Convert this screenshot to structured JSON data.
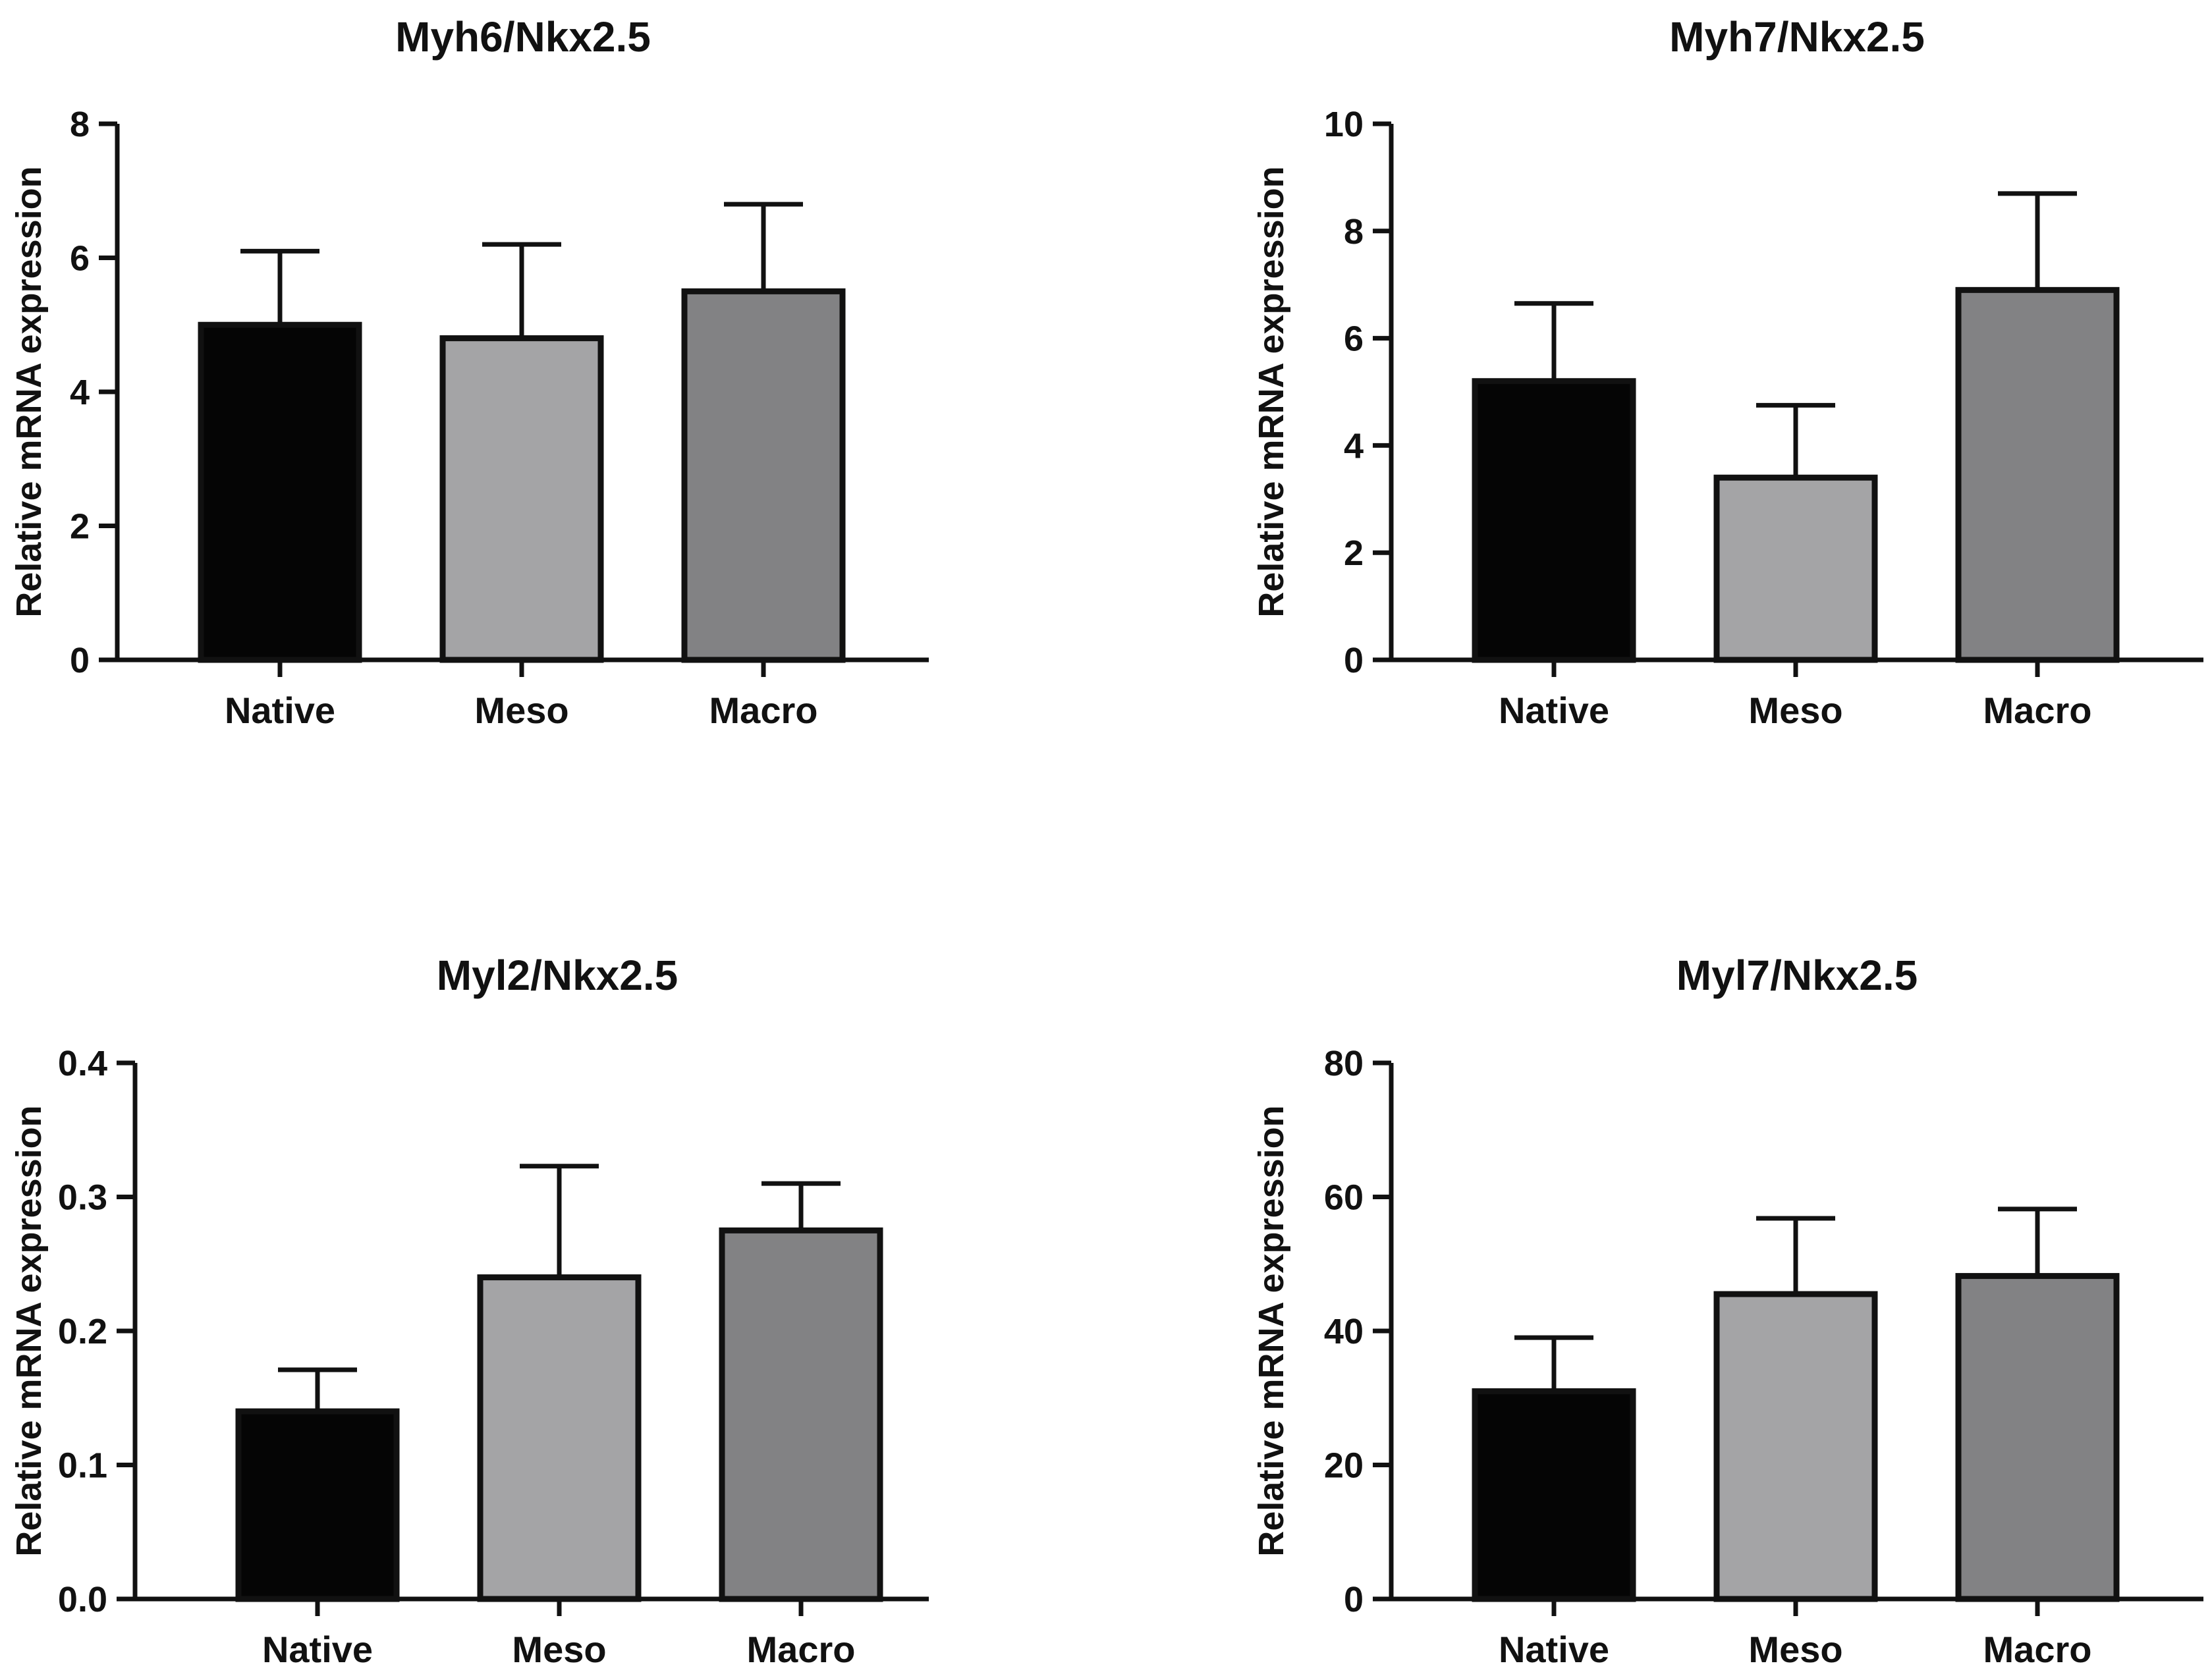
{
  "chart_data": [
    {
      "type": "bar",
      "title": "Myh6/Nkx2.5",
      "xlabel": "",
      "ylabel": "Relative mRNA expression",
      "categories": [
        "Native",
        "Meso",
        "Macro"
      ],
      "values": [
        5.0,
        4.8,
        5.5
      ],
      "errors": [
        1.1,
        1.4,
        1.3
      ],
      "ylim": [
        0,
        8
      ],
      "yticks": [
        0,
        2,
        4,
        6,
        8
      ],
      "ytick_labels": [
        "0",
        "2",
        "4",
        "6",
        "8"
      ],
      "grid": false
    },
    {
      "type": "bar",
      "title": "Myh7/Nkx2.5",
      "xlabel": "",
      "ylabel": "Relative mRNA expression",
      "categories": [
        "Native",
        "Meso",
        "Macro"
      ],
      "values": [
        5.2,
        3.4,
        6.9
      ],
      "errors": [
        1.45,
        1.35,
        1.8
      ],
      "ylim": [
        0,
        10
      ],
      "yticks": [
        0,
        2,
        4,
        6,
        8,
        10
      ],
      "ytick_labels": [
        "0",
        "2",
        "4",
        "6",
        "8",
        "10"
      ],
      "grid": false
    },
    {
      "type": "bar",
      "title": "Myl2/Nkx2.5",
      "xlabel": "",
      "ylabel": "Relative mRNA expression",
      "categories": [
        "Native",
        "Meso",
        "Macro"
      ],
      "values": [
        0.14,
        0.24,
        0.275
      ],
      "errors": [
        0.031,
        0.083,
        0.035
      ],
      "ylim": [
        0,
        0.4
      ],
      "yticks": [
        0,
        0.1,
        0.2,
        0.3,
        0.4
      ],
      "ytick_labels": [
        "0.0",
        "0.1",
        "0.2",
        "0.3",
        "0.4"
      ],
      "grid": false
    },
    {
      "type": "bar",
      "title": "Myl7/Nkx2.5",
      "xlabel": "",
      "ylabel": "Relative mRNA expression",
      "categories": [
        "Native",
        "Meso",
        "Macro"
      ],
      "values": [
        31,
        45.5,
        48.2
      ],
      "errors": [
        8,
        11.3,
        10
      ],
      "ylim": [
        0,
        80
      ],
      "yticks": [
        0,
        20,
        40,
        60,
        80
      ],
      "ytick_labels": [
        "0",
        "20",
        "40",
        "60",
        "80"
      ],
      "grid": false
    }
  ],
  "colors": {
    "Native": "#050505",
    "Meso": "#a4a4a6",
    "Macro": "#828284",
    "axis": "#111111"
  }
}
